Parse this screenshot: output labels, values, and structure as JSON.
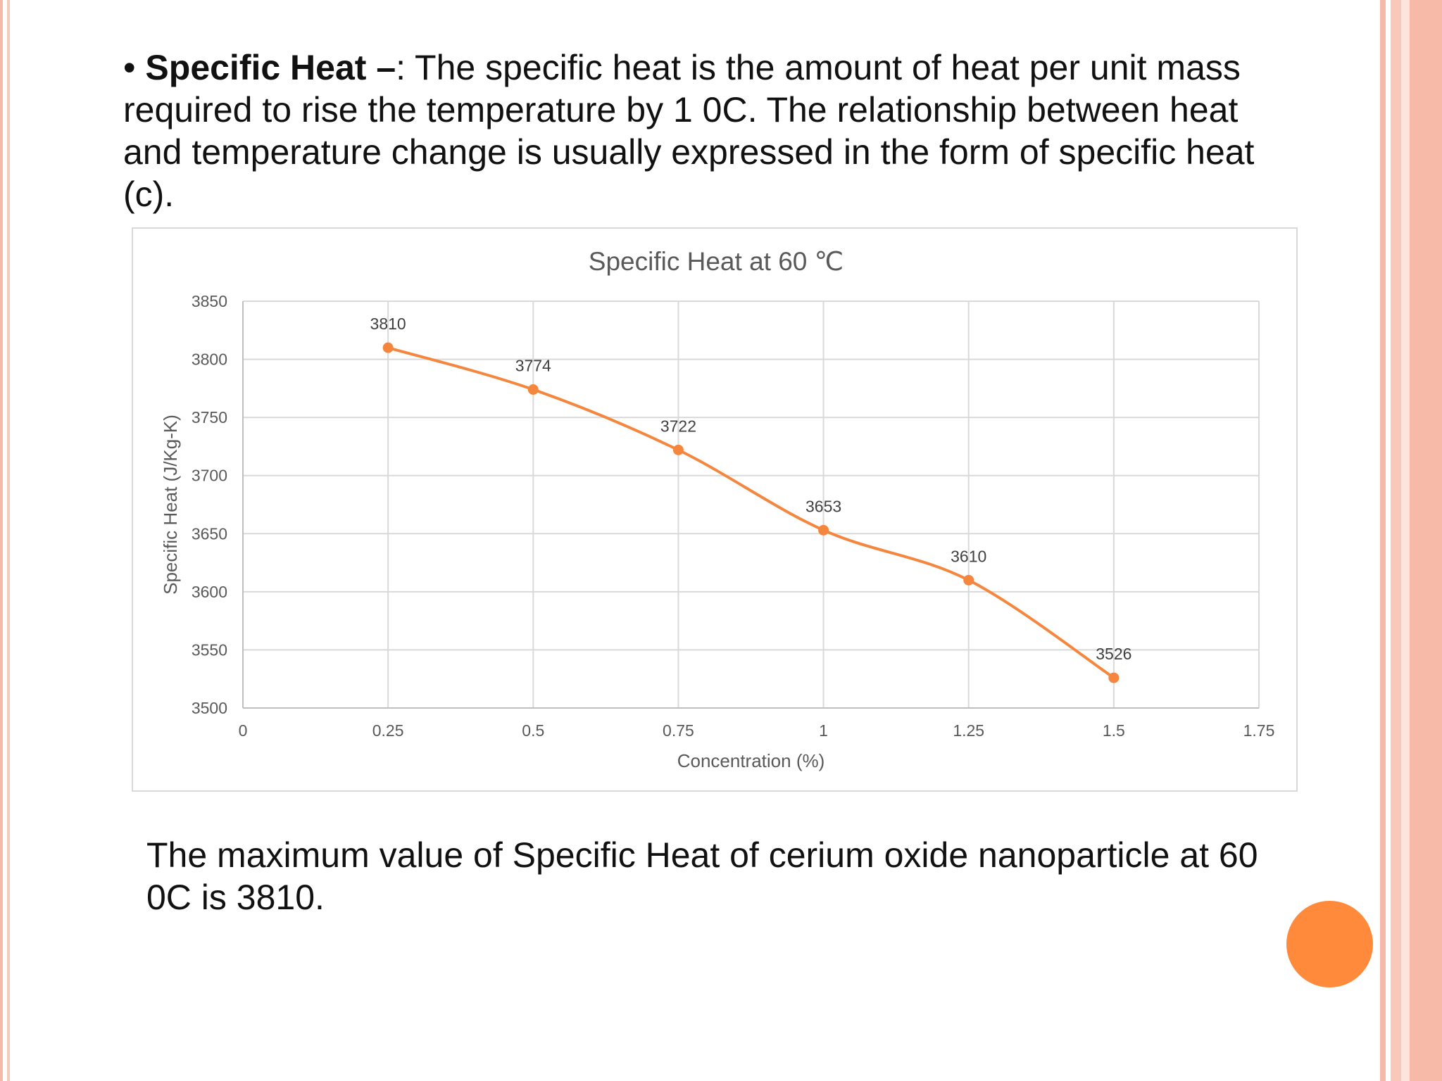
{
  "slide": {
    "bullet": "•",
    "heading": "Specific Heat –",
    "intro_text": ": The specific heat is the amount of heat per unit mass required to rise the temperature by 1 0C. The relationship between heat and temperature change is usually expressed in the form of specific heat (c).",
    "conclusion": "The maximum value of Specific Heat of cerium oxide nanoparticle at 60 0C is 3810."
  },
  "colors": {
    "accent": "#ff8a3c",
    "series": "#f4873d",
    "stripe": "#f6b8a8"
  },
  "chart_data": {
    "type": "line",
    "title": "Specific Heat at 60 ℃",
    "xlabel": "Concentration (%)",
    "ylabel": "Specific Heat (J/Kg-K)",
    "xlim": [
      0,
      1.75
    ],
    "ylim": [
      3500,
      3850
    ],
    "xticks": [
      0,
      0.25,
      0.5,
      0.75,
      1,
      1.25,
      1.5,
      1.75
    ],
    "xtick_labels": [
      "0",
      "0.25",
      "0.5",
      "0.75",
      "1",
      "1.25",
      "1.5",
      "1.75"
    ],
    "yticks": [
      3500,
      3550,
      3600,
      3650,
      3700,
      3750,
      3800,
      3850
    ],
    "ytick_labels": [
      "3500",
      "3550",
      "3600",
      "3650",
      "3700",
      "3750",
      "3800",
      "3850"
    ],
    "grid": true,
    "smooth": true,
    "series": [
      {
        "name": "Specific Heat",
        "x": [
          0.25,
          0.5,
          0.75,
          1,
          1.25,
          1.5
        ],
        "values": [
          3810,
          3774,
          3722,
          3653,
          3610,
          3526
        ],
        "labels": [
          "3810",
          "3774",
          "3722",
          "3653",
          "3610",
          "3526"
        ]
      }
    ]
  }
}
